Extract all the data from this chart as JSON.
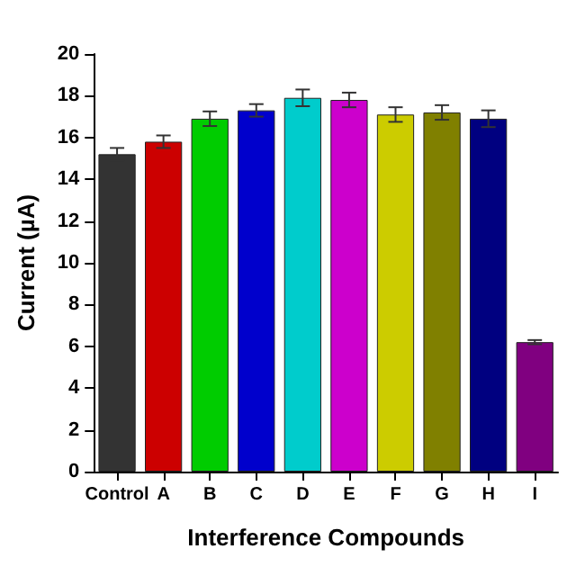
{
  "chart_data": {
    "type": "bar",
    "xlabel": "Interference Compounds",
    "ylabel": "Current (µA)",
    "categories": [
      "Control",
      "A",
      "B",
      "C",
      "D",
      "E",
      "F",
      "G",
      "H",
      "I"
    ],
    "values": [
      15.2,
      15.8,
      16.9,
      17.3,
      17.9,
      17.8,
      17.1,
      17.2,
      16.9,
      6.2
    ],
    "errors": [
      0.3,
      0.3,
      0.35,
      0.3,
      0.4,
      0.35,
      0.35,
      0.35,
      0.4,
      0.1
    ],
    "colors": [
      "#333333",
      "#cc0000",
      "#00cc00",
      "#0000cc",
      "#00cccc",
      "#cc00cc",
      "#cccc00",
      "#808000",
      "#000080",
      "#800080"
    ],
    "ylim": [
      0,
      20
    ],
    "yticks": [
      0,
      2,
      4,
      6,
      8,
      10,
      12,
      14,
      16,
      18,
      20
    ],
    "grid": false
  }
}
